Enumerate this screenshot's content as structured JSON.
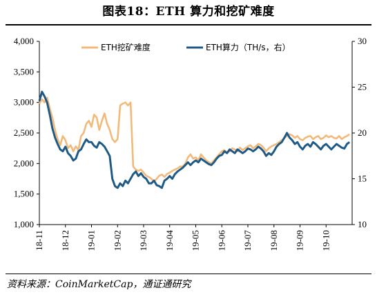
{
  "title": "图表18：ETH 算力和挖矿难度",
  "source": "资料来源：CoinMarketCap，通证通研究",
  "chart_data": {
    "type": "line",
    "x_tick_labels": [
      "18-11",
      "18-12",
      "19-01",
      "19-02",
      "19-03",
      "19-04",
      "19-05",
      "19-06",
      "19-07",
      "19-08",
      "19-09",
      "19-10"
    ],
    "x_range": [
      0,
      12
    ],
    "left_axis": {
      "ylim": [
        1000,
        4000
      ],
      "ticks": [
        "1,000",
        "1,500",
        "2,000",
        "2,500",
        "3,000",
        "3,500",
        "4,000"
      ]
    },
    "right_axis": {
      "ylim": [
        10,
        30
      ],
      "ticks": [
        "10",
        "15",
        "20",
        "25",
        "30"
      ]
    },
    "grid": false,
    "legend_position": "top",
    "series": [
      {
        "name": "ETH挖矿难度",
        "axis": "left",
        "color": "#F2B97A",
        "x": [
          0.0,
          0.1,
          0.2,
          0.3,
          0.4,
          0.5,
          0.6,
          0.7,
          0.8,
          0.9,
          1.0,
          1.1,
          1.2,
          1.3,
          1.4,
          1.5,
          1.6,
          1.7,
          1.8,
          1.9,
          2.0,
          2.1,
          2.2,
          2.3,
          2.4,
          2.5,
          2.6,
          2.7,
          2.8,
          2.9,
          3.0,
          3.1,
          3.2,
          3.3,
          3.4,
          3.5,
          3.6,
          3.7,
          3.8,
          3.9,
          4.0,
          4.1,
          4.2,
          4.3,
          4.4,
          4.5,
          4.6,
          4.7,
          4.8,
          4.9,
          5.0,
          5.1,
          5.2,
          5.3,
          5.4,
          5.5,
          5.6,
          5.7,
          5.8,
          5.9,
          6.0,
          6.1,
          6.2,
          6.3,
          6.4,
          6.5,
          6.6,
          6.7,
          6.8,
          6.9,
          7.0,
          7.1,
          7.2,
          7.3,
          7.4,
          7.5,
          7.6,
          7.7,
          7.8,
          7.9,
          8.0,
          8.1,
          8.2,
          8.3,
          8.4,
          8.5,
          8.6,
          8.7,
          8.8,
          8.9,
          9.0,
          9.1,
          9.2,
          9.3,
          9.4,
          9.5,
          9.6,
          9.7,
          9.8,
          9.9,
          10.0,
          10.1,
          10.2,
          10.3,
          10.4,
          10.5,
          10.6,
          10.7,
          10.8,
          10.9,
          11.0,
          11.1,
          11.2,
          11.3,
          11.4,
          11.5,
          11.6,
          11.7,
          11.8,
          11.9
        ],
        "values": [
          2980,
          3050,
          3000,
          3080,
          2900,
          2750,
          2550,
          2400,
          2300,
          2450,
          2380,
          2250,
          2300,
          2200,
          2280,
          2220,
          2450,
          2500,
          2650,
          2700,
          2600,
          2800,
          2750,
          2550,
          2700,
          2820,
          2650,
          2550,
          2400,
          2350,
          2400,
          2950,
          2980,
          3000,
          2950,
          3000,
          1950,
          1900,
          1880,
          1900,
          1850,
          1800,
          1780,
          1750,
          1700,
          1750,
          1800,
          1820,
          1780,
          1830,
          1850,
          1880,
          1900,
          1920,
          1950,
          1950,
          2000,
          2100,
          2150,
          2080,
          2100,
          2050,
          2150,
          2100,
          2050,
          2020,
          2000,
          2050,
          2100,
          2150,
          2200,
          2220,
          2180,
          2200,
          2250,
          2230,
          2200,
          2260,
          2220,
          2250,
          2280,
          2300,
          2250,
          2280,
          2320,
          2300,
          2260,
          2200,
          2250,
          2280,
          2300,
          2320,
          2350,
          2380,
          2420,
          2450,
          2480,
          2460,
          2420,
          2450,
          2400,
          2380,
          2420,
          2440,
          2450,
          2400,
          2430,
          2450,
          2400,
          2420,
          2460,
          2430,
          2450,
          2420,
          2410,
          2450,
          2400,
          2430,
          2450,
          2480
        ]
      },
      {
        "name": "ETH算力（TH/s，右）",
        "axis": "right",
        "color": "#1F5A86",
        "x": [
          0.0,
          0.1,
          0.2,
          0.3,
          0.4,
          0.5,
          0.6,
          0.7,
          0.8,
          0.9,
          1.0,
          1.1,
          1.2,
          1.3,
          1.4,
          1.5,
          1.6,
          1.7,
          1.8,
          1.9,
          2.0,
          2.1,
          2.2,
          2.3,
          2.4,
          2.5,
          2.6,
          2.7,
          2.8,
          2.9,
          3.0,
          3.1,
          3.2,
          3.3,
          3.4,
          3.5,
          3.6,
          3.7,
          3.8,
          3.9,
          4.0,
          4.1,
          4.2,
          4.3,
          4.4,
          4.5,
          4.6,
          4.7,
          4.8,
          4.9,
          5.0,
          5.1,
          5.2,
          5.3,
          5.4,
          5.5,
          5.6,
          5.7,
          5.8,
          5.9,
          6.0,
          6.1,
          6.2,
          6.3,
          6.4,
          6.5,
          6.6,
          6.7,
          6.8,
          6.9,
          7.0,
          7.1,
          7.2,
          7.3,
          7.4,
          7.5,
          7.6,
          7.7,
          7.8,
          7.9,
          8.0,
          8.1,
          8.2,
          8.3,
          8.4,
          8.5,
          8.6,
          8.7,
          8.8,
          8.9,
          9.0,
          9.1,
          9.2,
          9.3,
          9.4,
          9.5,
          9.6,
          9.7,
          9.8,
          9.9,
          10.0,
          10.1,
          10.2,
          10.3,
          10.4,
          10.5,
          10.6,
          10.7,
          10.8,
          10.9,
          11.0,
          11.1,
          11.2,
          11.3,
          11.4,
          11.5,
          11.6,
          11.7,
          11.8,
          11.9
        ],
        "values": [
          23.5,
          24.5,
          24.0,
          23.3,
          22.0,
          20.5,
          19.5,
          18.8,
          18.2,
          18.0,
          18.5,
          17.8,
          17.5,
          17.0,
          17.2,
          18.0,
          18.2,
          18.8,
          19.3,
          19.0,
          19.0,
          18.6,
          18.4,
          19.0,
          18.8,
          18.5,
          18.0,
          17.5,
          15.0,
          14.2,
          14.0,
          14.5,
          14.2,
          14.8,
          14.5,
          15.0,
          15.5,
          15.8,
          15.3,
          15.6,
          15.2,
          15.0,
          14.5,
          14.5,
          14.8,
          14.3,
          14.2,
          14.0,
          14.8,
          15.0,
          15.3,
          15.0,
          15.5,
          15.8,
          16.0,
          16.2,
          16.5,
          16.8,
          16.5,
          16.8,
          17.0,
          16.8,
          17.2,
          17.0,
          16.8,
          16.6,
          16.5,
          16.8,
          17.2,
          17.5,
          17.6,
          18.0,
          17.8,
          18.2,
          18.0,
          17.8,
          18.2,
          18.0,
          17.8,
          18.0,
          18.3,
          18.2,
          18.0,
          18.2,
          18.5,
          18.3,
          18.0,
          17.5,
          17.8,
          17.6,
          18.0,
          18.5,
          18.8,
          19.0,
          19.5,
          20.0,
          19.5,
          19.2,
          18.8,
          19.0,
          18.5,
          18.2,
          18.6,
          18.8,
          18.5,
          19.0,
          18.8,
          18.5,
          18.2,
          18.6,
          18.8,
          18.5,
          18.2,
          18.5,
          18.8,
          18.6,
          18.4,
          18.3,
          18.8,
          19.0
        ]
      }
    ]
  }
}
